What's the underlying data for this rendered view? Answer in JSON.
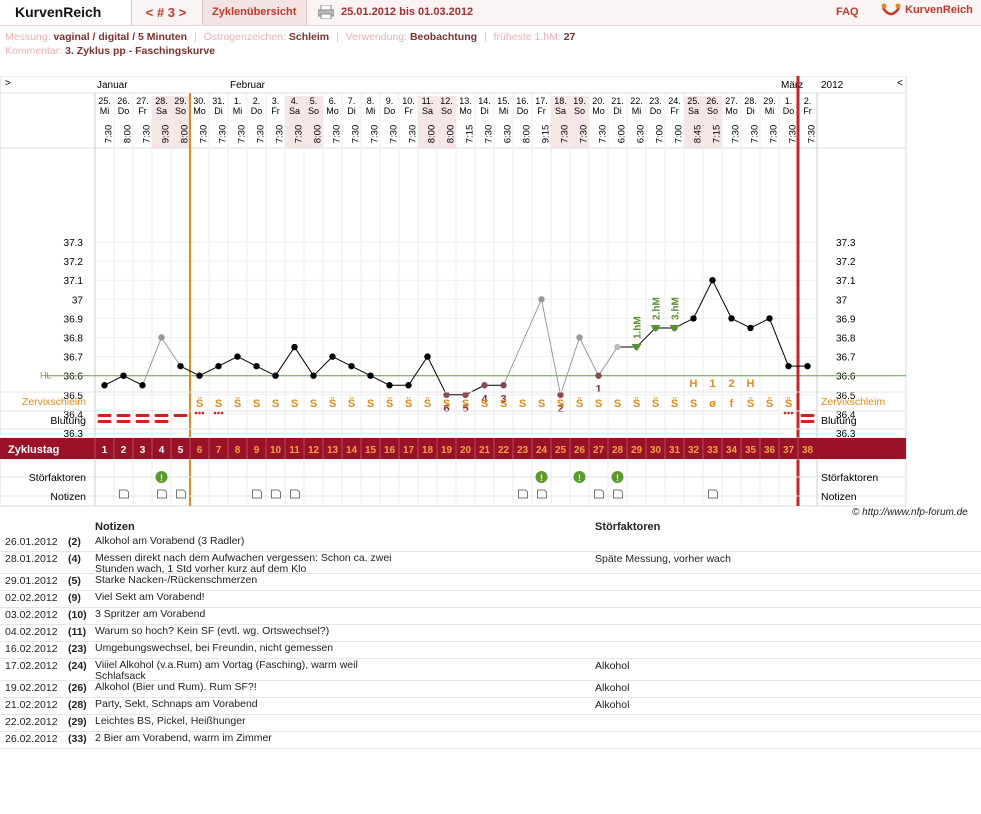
{
  "app": {
    "brand": "KurvenReich",
    "nav": "< # 3 >",
    "tab": "Zyklenübersicht",
    "range": "25.01.2012 bis 01.03.2012",
    "faq": "FAQ",
    "logo_text": "KurvenReich"
  },
  "meta": {
    "messung_label": "Messung:",
    "messung_value": "vaginal / digital / 5 Minuten",
    "oestrogen_label": "Östrogenzeichen:",
    "oestrogen_value": "Schleim",
    "verwendung_label": "Verwendung:",
    "verwendung_value": "Beobachtung",
    "hm_label": "früheste 1.hM:",
    "hm_value": "27",
    "kommentar_label": "Kommentar:",
    "kommentar_value": "3. Zyklus pp - Faschingskurve"
  },
  "chart": {
    "left_arrow": ">",
    "right_arrow": "<",
    "year": "2012",
    "months": [
      {
        "label": "Januar",
        "day_index": 0
      },
      {
        "label": "Februar",
        "day_index": 7
      },
      {
        "label": "März",
        "day_index": 36
      }
    ],
    "dates": [
      "25.",
      "26.",
      "27.",
      "28.",
      "29.",
      "30.",
      "31.",
      "1.",
      "2.",
      "3.",
      "4.",
      "5.",
      "6.",
      "7.",
      "8.",
      "9.",
      "10.",
      "11.",
      "12.",
      "13.",
      "14.",
      "15.",
      "16.",
      "17.",
      "18.",
      "19.",
      "20.",
      "21.",
      "22.",
      "23.",
      "24.",
      "25.",
      "26.",
      "27.",
      "28.",
      "29.",
      "1.",
      "2."
    ],
    "weekdays": [
      "Mi",
      "Do",
      "Fr",
      "Sa",
      "So",
      "Mo",
      "Di",
      "Mi",
      "Do",
      "Fr",
      "Sa",
      "So",
      "Mo",
      "Di",
      "Mi",
      "Do",
      "Fr",
      "Sa",
      "So",
      "Mo",
      "Di",
      "Mi",
      "Do",
      "Fr",
      "Sa",
      "So",
      "Mo",
      "Di",
      "Mi",
      "Do",
      "Fr",
      "Sa",
      "So",
      "Mo",
      "Di",
      "Mi",
      "Do",
      "Fr"
    ],
    "times": [
      "7:30",
      "8:00",
      "7:30",
      "9:30",
      "8:00",
      "7:30",
      "7:30",
      "7:30",
      "7:30",
      "7:30",
      "7:30",
      "8:00",
      "7:30",
      "7:30",
      "7:30",
      "7:30",
      "7:30",
      "8:00",
      "8:00",
      "7:15",
      "7:30",
      "6:30",
      "8:00",
      "9:15",
      "7:30",
      "7:30",
      "7:30",
      "6:00",
      "6:30",
      "7:00",
      "7:00",
      "8:45",
      "7:15",
      "7:30",
      "7:30",
      "7:30",
      "7:30",
      "7:30"
    ],
    "y_ticks": [
      "37.3",
      "37.2",
      "37.1",
      "37",
      "36.9",
      "36.8",
      "36.7",
      "36.6",
      "36.5",
      "36.4",
      "36.3"
    ],
    "hl_label": "HL",
    "hl_value": 36.6,
    "row_labels": {
      "schleim": "Zervixschleim",
      "blutung": "Blutung",
      "zyklustag": "Zyklustag",
      "stoer": "Störfaktoren",
      "notizen": "Notizen"
    },
    "cycle_days": [
      "1",
      "2",
      "3",
      "4",
      "5",
      "6",
      "7",
      "8",
      "9",
      "10",
      "11",
      "12",
      "13",
      "14",
      "15",
      "16",
      "17",
      "18",
      "19",
      "20",
      "21",
      "22",
      "23",
      "24",
      "25",
      "26",
      "27",
      "28",
      "29",
      "30",
      "31",
      "32",
      "33",
      "34",
      "35",
      "36",
      "37",
      "38"
    ],
    "hm_labels": [
      "1.hM",
      "2.hM",
      "3.hM"
    ],
    "top_letters": [
      "H",
      "1",
      "2",
      "H"
    ],
    "mucus": [
      "",
      "",
      "",
      "",
      "",
      "S̈",
      "S",
      "S̈",
      "S",
      "S",
      "S",
      "S",
      "S̈",
      "S̈",
      "S",
      "S̈",
      "S̈",
      "S̈",
      "S",
      "S",
      "S",
      "S",
      "S",
      "S",
      "S̈",
      "S̈",
      "S",
      "S",
      "S̈",
      "S̈",
      "S̈",
      "S",
      "ø",
      "f",
      "S̈",
      "S̈",
      "S̈",
      ""
    ],
    "skip_numbers": [
      "6",
      "5",
      "4",
      "3",
      "2",
      "1"
    ],
    "footer": "© http://www.nfp-forum.de",
    "colors": {
      "accent": "#9b1128",
      "orange": "#e08a1e",
      "green": "#5a8f2e",
      "redline": "#cc2222"
    }
  },
  "chart_data": {
    "type": "line",
    "x": [
      "25.",
      "26.",
      "27.",
      "28.",
      "29.",
      "30.",
      "31.",
      "1.",
      "2.",
      "3.",
      "4.",
      "5.",
      "6.",
      "7.",
      "8.",
      "9.",
      "10.",
      "11.",
      "12.",
      "13.",
      "14.",
      "15.",
      "16.",
      "17.",
      "18.",
      "19.",
      "20.",
      "21.",
      "22.",
      "23.",
      "24.",
      "25.",
      "26.",
      "27.",
      "28.",
      "29.",
      "1.",
      "2."
    ],
    "series": [
      {
        "values": [
          36.55,
          36.6,
          36.55,
          36.8,
          36.65,
          36.6,
          36.65,
          36.7,
          36.65,
          36.6,
          36.75,
          36.6,
          36.7,
          36.65,
          36.6,
          36.55,
          36.55,
          36.7,
          36.5,
          36.5,
          36.55,
          36.55,
          null,
          37.0,
          36.5,
          36.8,
          36.6,
          36.75,
          36.75,
          36.85,
          36.85,
          36.9,
          37.1,
          36.9,
          36.85,
          36.9,
          36.65,
          36.65
        ]
      }
    ],
    "ylim": [
      36.3,
      37.3
    ],
    "grid": true
  },
  "notes": {
    "header_notes": "Notizen",
    "header_stoer": "Störfaktoren",
    "rows": [
      {
        "date": "26.01.2012",
        "day": "(2)",
        "text": "Alkohol am Vorabend (3 Radler)",
        "stoer": ""
      },
      {
        "date": "28.01.2012",
        "day": "(4)",
        "text": "Messen direkt nach dem Aufwachen vergessen: Schon ca. zwei Stunden wach, 1 Std vorher kurz auf dem Klo",
        "stoer": "Späte Messung, vorher wach"
      },
      {
        "date": "29.01.2012",
        "day": "(5)",
        "text": "Starke Nacken-/Rückenschmerzen",
        "stoer": ""
      },
      {
        "date": "02.02.2012",
        "day": "(9)",
        "text": "Viel Sekt am Vorabend!",
        "stoer": ""
      },
      {
        "date": "03.02.2012",
        "day": "(10)",
        "text": "3 Spritzer am Vorabend",
        "stoer": ""
      },
      {
        "date": "04.02.2012",
        "day": "(11)",
        "text": "Warum so hoch? Kein SF (evtl. wg. Ortswechsel?)",
        "stoer": ""
      },
      {
        "date": "16.02.2012",
        "day": "(23)",
        "text": "Umgebungswechsel, bei Freundin, nicht gemessen",
        "stoer": ""
      },
      {
        "date": "17.02.2012",
        "day": "(24)",
        "text": "Viiiel Alkohol (v.a.Rum) am  Vortag (Fasching), warm weil Schlafsack",
        "stoer": "Alkohol"
      },
      {
        "date": "19.02.2012",
        "day": "(26)",
        "text": "Alkohol (Bier und Rum). Rum SF?!",
        "stoer": "Alkohol"
      },
      {
        "date": "21.02.2012",
        "day": "(28)",
        "text": "Party, Sekt, Schnaps am Vorabend",
        "stoer": "Alkohol"
      },
      {
        "date": "22.02.2012",
        "day": "(29)",
        "text": "Leichtes BS, Pickel, Heißhunger",
        "stoer": ""
      },
      {
        "date": "26.02.2012",
        "day": "(33)",
        "text": "2 Bier am Vorabend, warm im Zimmer",
        "stoer": ""
      }
    ]
  }
}
